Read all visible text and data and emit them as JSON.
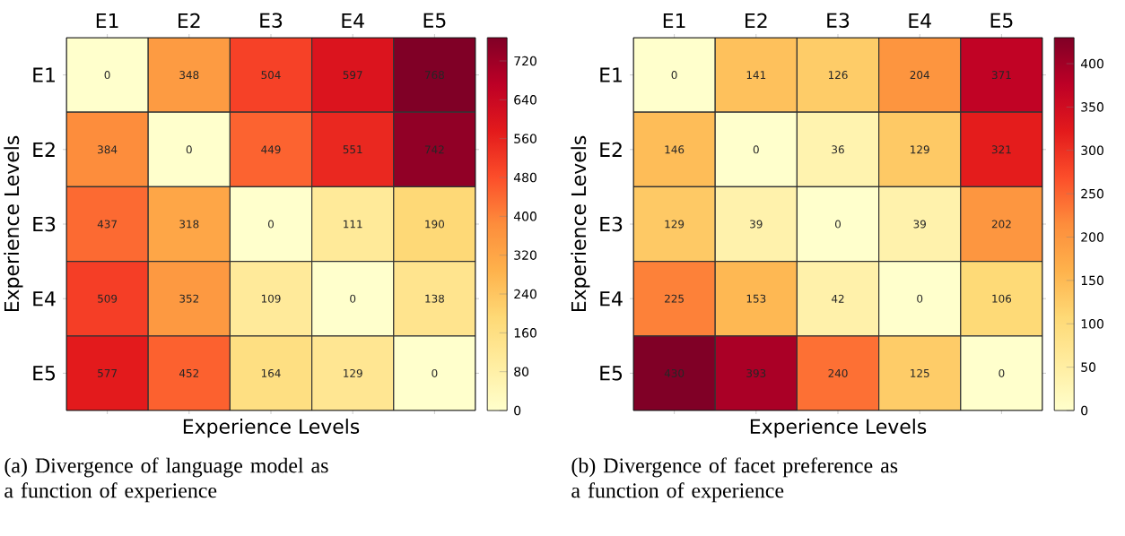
{
  "chart_data": [
    {
      "type": "heatmap",
      "xlabel": "Experience Levels",
      "ylabel": "Experience Levels",
      "categories": [
        "E1",
        "E2",
        "E3",
        "E4",
        "E5"
      ],
      "y_categories": [
        "E1",
        "E2",
        "E3",
        "E4",
        "E5"
      ],
      "cells": [
        [
          0,
          348,
          504,
          597,
          768
        ],
        [
          384,
          0,
          449,
          551,
          742
        ],
        [
          437,
          318,
          0,
          111,
          190
        ],
        [
          509,
          352,
          109,
          0,
          138
        ],
        [
          577,
          452,
          164,
          129,
          0
        ]
      ],
      "data_labels": true,
      "clim": [
        0,
        768
      ],
      "cticks": [
        0,
        80,
        160,
        240,
        320,
        400,
        480,
        560,
        640,
        720
      ],
      "annotations": [
        "(a) Divergence of language model as a function of experience"
      ]
    },
    {
      "type": "heatmap",
      "xlabel": "Experience Levels",
      "ylabel": "Experience Levels",
      "categories": [
        "E1",
        "E2",
        "E3",
        "E4",
        "E5"
      ],
      "y_categories": [
        "E1",
        "E2",
        "E3",
        "E4",
        "E5"
      ],
      "cells": [
        [
          0,
          141,
          126,
          204,
          371
        ],
        [
          146,
          0,
          36,
          129,
          321
        ],
        [
          129,
          39,
          0,
          39,
          202
        ],
        [
          225,
          153,
          42,
          0,
          106
        ],
        [
          430,
          393,
          240,
          125,
          0
        ]
      ],
      "data_labels": true,
      "clim": [
        0,
        430
      ],
      "cticks": [
        0,
        50,
        100,
        150,
        200,
        250,
        300,
        350,
        400
      ],
      "annotations": [
        "(b) Divergence of facet preference as a function of experience"
      ]
    }
  ]
}
